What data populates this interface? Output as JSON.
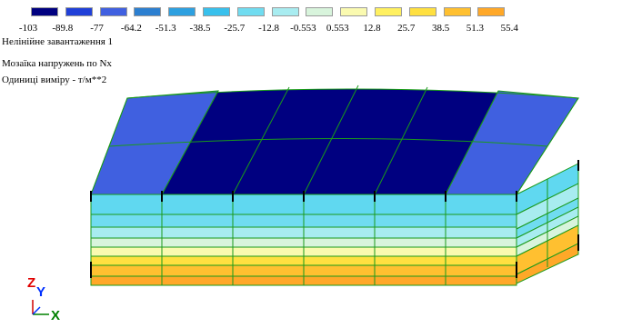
{
  "legend": {
    "items": [
      {
        "value": "-103",
        "color": "#000080"
      },
      {
        "value": "-89.8",
        "color": "#2040d8"
      },
      {
        "value": "-77",
        "color": "#4060e0"
      },
      {
        "value": "-64.2",
        "color": "#2c7fd0"
      },
      {
        "value": "-51.3",
        "color": "#2da0e0"
      },
      {
        "value": "-38.5",
        "color": "#38c0ec"
      },
      {
        "value": "-25.7",
        "color": "#70dcf0"
      },
      {
        "value": "-12.8",
        "color": "#a8ecf0"
      },
      {
        "value": "-0.553",
        "color": "#d8f4dc"
      },
      {
        "value": "0.553",
        "color": "#fafab0"
      },
      {
        "value": "12.8",
        "color": "#fff060"
      },
      {
        "value": "25.7",
        "color": "#ffe040"
      },
      {
        "value": "38.5",
        "color": "#ffc030"
      },
      {
        "value": "51.3",
        "color": "#ffa828"
      }
    ],
    "last_value": "55.4"
  },
  "info": {
    "line1": "Нелінійне завантаження 1",
    "line2": "Мозаїка напружень по Nx",
    "line3": "Одиниці виміру - т/м**2"
  },
  "axes": {
    "z_label": "Z",
    "y_label": "Y",
    "x_label": "X",
    "z_color": "#e00000",
    "y_color": "#0030ff",
    "x_color": "#008000"
  }
}
